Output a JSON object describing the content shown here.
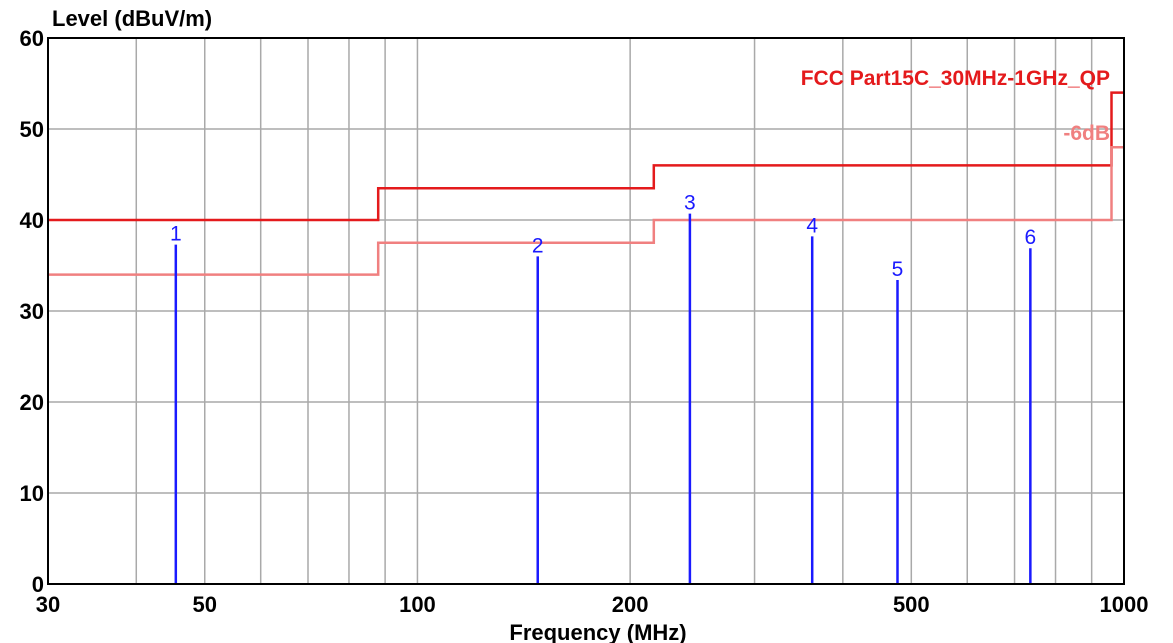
{
  "chart_data": {
    "type": "line",
    "title": "",
    "ylabel": "Level (dBuV/m)",
    "xlabel": "Frequency (MHz)",
    "x_scale": "log",
    "xlim": [
      30,
      1000
    ],
    "ylim": [
      0,
      60
    ],
    "grid": true,
    "x_ticks": [
      30,
      50,
      100,
      200,
      500,
      1000
    ],
    "y_ticks": [
      0,
      10,
      20,
      30,
      40,
      50,
      60
    ],
    "limit_lines": [
      {
        "name": "FCC Part15C_30MHz-1GHz_QP",
        "color": "#e41a1c",
        "points": [
          [
            30,
            40
          ],
          [
            88,
            40
          ],
          [
            88,
            43.5
          ],
          [
            216,
            43.5
          ],
          [
            216,
            46
          ],
          [
            960,
            46
          ],
          [
            960,
            54
          ],
          [
            1000,
            54
          ]
        ]
      },
      {
        "name": "-6dB",
        "color": "#f08080",
        "points": [
          [
            30,
            34
          ],
          [
            88,
            34
          ],
          [
            88,
            37.5
          ],
          [
            216,
            37.5
          ],
          [
            216,
            40
          ],
          [
            960,
            40
          ],
          [
            960,
            48
          ],
          [
            1000,
            48
          ]
        ]
      }
    ],
    "peaks": [
      {
        "label": "1",
        "x": 45.5,
        "y": 37.3
      },
      {
        "label": "2",
        "x": 148,
        "y": 36.0
      },
      {
        "label": "3",
        "x": 243,
        "y": 40.7
      },
      {
        "label": "4",
        "x": 362,
        "y": 38.2
      },
      {
        "label": "5",
        "x": 478,
        "y": 33.4
      },
      {
        "label": "6",
        "x": 737,
        "y": 36.9
      }
    ],
    "peak_color": "#1a1aff"
  }
}
